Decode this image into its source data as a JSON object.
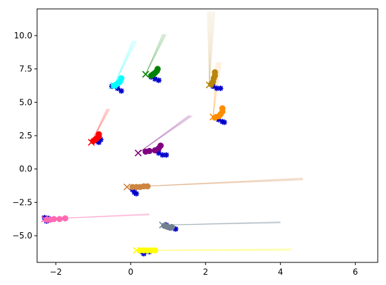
{
  "chart_data": {
    "type": "scatter",
    "title": "",
    "xlabel": "",
    "ylabel": "",
    "xlim": [
      -2.5,
      6.6
    ],
    "ylim": [
      -7.0,
      12.0
    ],
    "xticks": [
      -2,
      0,
      2,
      4,
      6
    ],
    "yticks": [
      -5.0,
      -2.5,
      0.0,
      2.5,
      5.0,
      7.5,
      10.0
    ],
    "xtick_labels": [
      "−2",
      "0",
      "2",
      "4",
      "6"
    ],
    "ytick_labels": [
      "−5.0",
      "−2.5",
      "0.0",
      "2.5",
      "5.0",
      "7.5",
      "10.0"
    ],
    "grid": false,
    "legend": "none",
    "clusters": [
      {
        "color": "#00ffff",
        "start_marker": [
          -0.45,
          6.25
        ],
        "trajectory_points": [
          [
            -0.45,
            6.25
          ],
          [
            -0.4,
            6.3
          ],
          [
            -0.35,
            6.4
          ],
          [
            -0.3,
            6.5
          ],
          [
            -0.28,
            6.6
          ],
          [
            -0.25,
            6.8
          ]
        ],
        "blue_star_points": [
          [
            -0.5,
            6.2
          ],
          [
            -0.35,
            6.05
          ],
          [
            -0.25,
            5.85
          ]
        ],
        "faint_path_top": [
          0.1,
          9.6
        ]
      },
      {
        "color": "#008000",
        "start_marker": [
          0.4,
          7.1
        ],
        "trajectory_points": [
          [
            0.55,
            7.0
          ],
          [
            0.6,
            7.1
          ],
          [
            0.65,
            7.2
          ],
          [
            0.7,
            7.35
          ],
          [
            0.72,
            7.5
          ]
        ],
        "blue_star_points": [
          [
            0.55,
            6.9
          ],
          [
            0.65,
            6.75
          ],
          [
            0.75,
            6.65
          ]
        ],
        "faint_path_top": [
          0.9,
          10.1
        ]
      },
      {
        "color": "#b8860b",
        "start_marker": [
          2.1,
          6.3
        ],
        "trajectory_points": [
          [
            2.15,
            6.35
          ],
          [
            2.2,
            6.55
          ],
          [
            2.22,
            6.8
          ],
          [
            2.25,
            7.0
          ],
          [
            2.25,
            7.25
          ]
        ],
        "blue_star_points": [
          [
            2.2,
            6.2
          ],
          [
            2.3,
            6.05
          ],
          [
            2.4,
            6.05
          ]
        ],
        "faint_path_top": [
          2.15,
          11.8
        ]
      },
      {
        "color": "#ff8c00",
        "start_marker": [
          2.2,
          3.9
        ],
        "trajectory_points": [
          [
            2.25,
            3.85
          ],
          [
            2.35,
            3.95
          ],
          [
            2.4,
            4.1
          ],
          [
            2.45,
            4.3
          ],
          [
            2.45,
            4.55
          ]
        ],
        "blue_star_points": [
          [
            2.35,
            3.7
          ],
          [
            2.45,
            3.55
          ],
          [
            2.5,
            3.5
          ]
        ],
        "faint_path_top": [
          2.35,
          8.0
        ]
      },
      {
        "color": "#ff0000",
        "start_marker": [
          -1.05,
          2.0
        ],
        "trajectory_points": [
          [
            -1.0,
            2.1
          ],
          [
            -0.95,
            2.2
          ],
          [
            -0.9,
            2.3
          ],
          [
            -0.85,
            2.45
          ],
          [
            -0.85,
            2.6
          ]
        ],
        "blue_star_points": [
          [
            -0.9,
            2.1
          ],
          [
            -0.85,
            2.0
          ],
          [
            -0.8,
            2.2
          ]
        ],
        "faint_path_top": [
          -0.6,
          4.5
        ]
      },
      {
        "color": "#800080",
        "start_marker": [
          0.2,
          1.2
        ],
        "trajectory_points": [
          [
            0.4,
            1.3
          ],
          [
            0.5,
            1.35
          ],
          [
            0.65,
            1.4
          ],
          [
            0.75,
            1.55
          ],
          [
            0.8,
            1.75
          ]
        ],
        "blue_star_points": [
          [
            0.75,
            1.2
          ],
          [
            0.85,
            1.05
          ],
          [
            0.95,
            1.05
          ]
        ],
        "faint_path_top": [
          1.6,
          4.0
        ]
      },
      {
        "color": "#cd853f",
        "start_marker": [
          -0.1,
          -1.35
        ],
        "trajectory_points": [
          [
            0.05,
            -1.35
          ],
          [
            0.15,
            -1.35
          ],
          [
            0.25,
            -1.35
          ],
          [
            0.35,
            -1.3
          ],
          [
            0.45,
            -1.3
          ]
        ],
        "blue_star_points": [
          [
            0.05,
            -1.55
          ],
          [
            0.1,
            -1.75
          ],
          [
            0.15,
            -1.85
          ]
        ],
        "faint_path_top": [
          4.6,
          -0.75
        ]
      },
      {
        "color": "#ff69b4",
        "start_marker": [
          -2.3,
          -3.75
        ],
        "trajectory_points": [
          [
            -2.25,
            -3.8
          ],
          [
            -2.15,
            -3.8
          ],
          [
            -2.05,
            -3.75
          ],
          [
            -1.9,
            -3.75
          ],
          [
            -1.75,
            -3.7
          ]
        ],
        "blue_star_points": [
          [
            -2.3,
            -3.65
          ],
          [
            -2.2,
            -3.7
          ],
          [
            -2.25,
            -3.9
          ]
        ],
        "faint_path_top": [
          0.5,
          -3.4
        ]
      },
      {
        "color": "#708090",
        "start_marker": [
          0.85,
          -4.2
        ],
        "trajectory_points": [
          [
            0.9,
            -4.25
          ],
          [
            0.95,
            -4.3
          ],
          [
            1.0,
            -4.35
          ],
          [
            1.05,
            -4.4
          ],
          [
            1.1,
            -4.35
          ]
        ],
        "blue_star_points": [
          [
            0.95,
            -4.2
          ],
          [
            1.1,
            -4.4
          ],
          [
            1.2,
            -4.5
          ]
        ],
        "faint_path_top": [
          4.0,
          -4.0
        ]
      },
      {
        "color": "#ffff00",
        "start_marker": [
          0.15,
          -6.1
        ],
        "trajectory_points": [
          [
            0.25,
            -6.1
          ],
          [
            0.35,
            -6.1
          ],
          [
            0.45,
            -6.1
          ],
          [
            0.55,
            -6.1
          ],
          [
            0.65,
            -6.1
          ]
        ],
        "blue_star_points": [
          [
            0.3,
            -6.2
          ],
          [
            0.35,
            -6.35
          ],
          [
            0.5,
            -6.2
          ]
        ],
        "faint_path_top": [
          4.3,
          -6.05
        ]
      }
    ]
  }
}
